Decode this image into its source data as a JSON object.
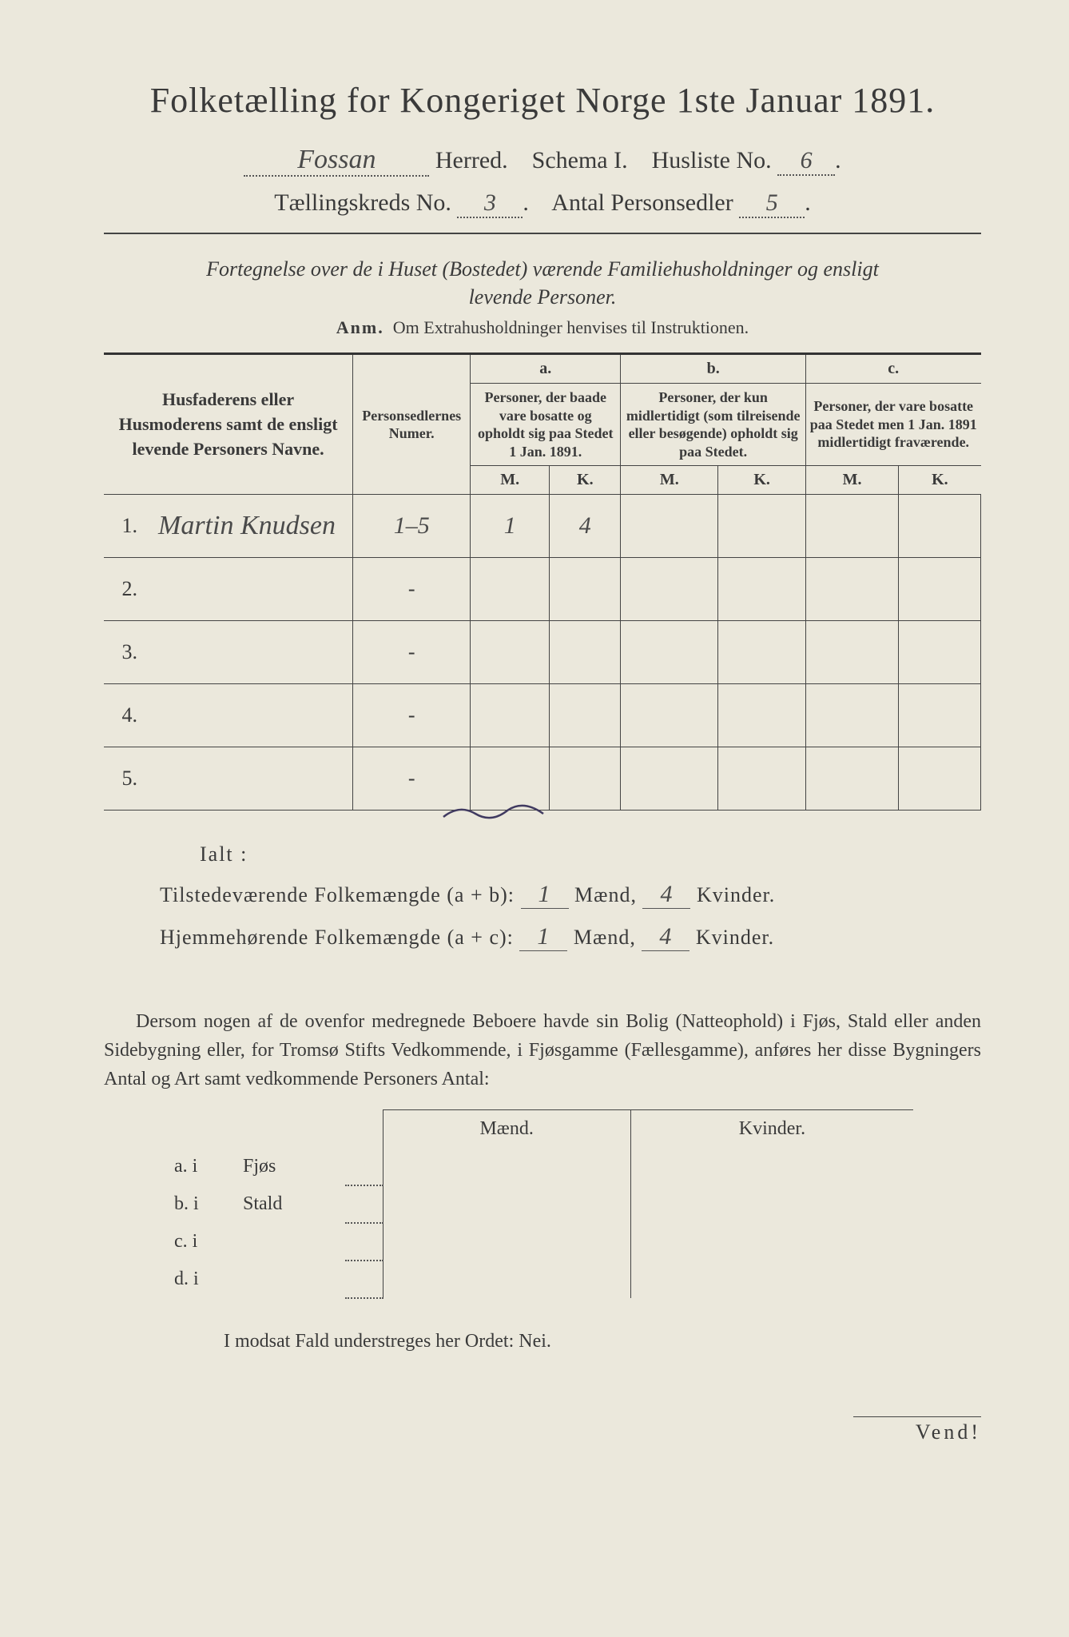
{
  "header": {
    "title": "Folketælling for Kongeriget Norge 1ste Januar 1891.",
    "herred_label": "Herred.",
    "herred_value": "Fossan",
    "schema_label": "Schema I.",
    "husliste_label": "Husliste No.",
    "husliste_value": "6",
    "kreds_label": "Tællingskreds No.",
    "kreds_value": "3",
    "antal_label": "Antal Personsedler",
    "antal_value": "5"
  },
  "subtitle_line1": "Fortegnelse over de i Huset (Bostedet) værende Familiehusholdninger og ensligt",
  "subtitle_line2": "levende Personer.",
  "anm_label": "Anm.",
  "anm_text": "Om Extrahusholdninger henvises til Instruktionen.",
  "columns": {
    "names": "Husfaderens eller Husmoderens samt de ensligt levende Personers Navne.",
    "personsedler": "Personsedlernes Numer.",
    "a_head": "a.",
    "a_text": "Personer, der baade vare bosatte og opholdt sig paa Stedet 1 Jan. 1891.",
    "b_head": "b.",
    "b_text": "Personer, der kun midlertidigt (som tilreisende eller besøgende) opholdt sig paa Stedet.",
    "c_head": "c.",
    "c_text": "Personer, der vare bosatte paa Stedet men 1 Jan. 1891 midlertidigt fraværende.",
    "m": "M.",
    "k": "K."
  },
  "rows": [
    {
      "num": "1.",
      "name": "Martin Knudsen",
      "sedler": "1–5",
      "a_m": "1",
      "a_k": "4",
      "b_m": "",
      "b_k": "",
      "c_m": "",
      "c_k": ""
    },
    {
      "num": "2.",
      "name": "",
      "sedler": "-",
      "a_m": "",
      "a_k": "",
      "b_m": "",
      "b_k": "",
      "c_m": "",
      "c_k": ""
    },
    {
      "num": "3.",
      "name": "",
      "sedler": "-",
      "a_m": "",
      "a_k": "",
      "b_m": "",
      "b_k": "",
      "c_m": "",
      "c_k": ""
    },
    {
      "num": "4.",
      "name": "",
      "sedler": "-",
      "a_m": "",
      "a_k": "",
      "b_m": "",
      "b_k": "",
      "c_m": "",
      "c_k": ""
    },
    {
      "num": "5.",
      "name": "",
      "sedler": "-",
      "a_m": "",
      "a_k": "",
      "b_m": "",
      "b_k": "",
      "c_m": "",
      "c_k": ""
    }
  ],
  "ialt_label": "Ialt :",
  "sum1_label": "Tilstedeværende Folkemængde (a + b):",
  "sum2_label": "Hjemmehørende Folkemængde (a + c):",
  "maend_label": "Mænd,",
  "kvinder_label": "Kvinder.",
  "sum1_m": "1",
  "sum1_k": "4",
  "sum2_m": "1",
  "sum2_k": "4",
  "para": "Dersom nogen af de ovenfor medregnede Beboere havde sin Bolig (Natteophold) i Fjøs, Stald eller anden Sidebygning eller, for Tromsø Stifts Vedkommende, i Fjøsgamme (Fællesgamme), anføres her disse Bygningers Antal og Art samt vedkommende Personers Antal:",
  "sub_header_m": "Mænd.",
  "sub_header_k": "Kvinder.",
  "sub_rows": [
    {
      "key": "a.  i",
      "label": "Fjøs"
    },
    {
      "key": "b.  i",
      "label": "Stald"
    },
    {
      "key": "c.  i",
      "label": ""
    },
    {
      "key": "d.  i",
      "label": ""
    }
  ],
  "modsat": "I modsat Fald understreges her Ordet: Nei.",
  "vend": "Vend!",
  "colors": {
    "paper": "#ebe8dc",
    "ink": "#3a3a3a",
    "hand": "#4a4a4a",
    "purple": "#403a60"
  }
}
